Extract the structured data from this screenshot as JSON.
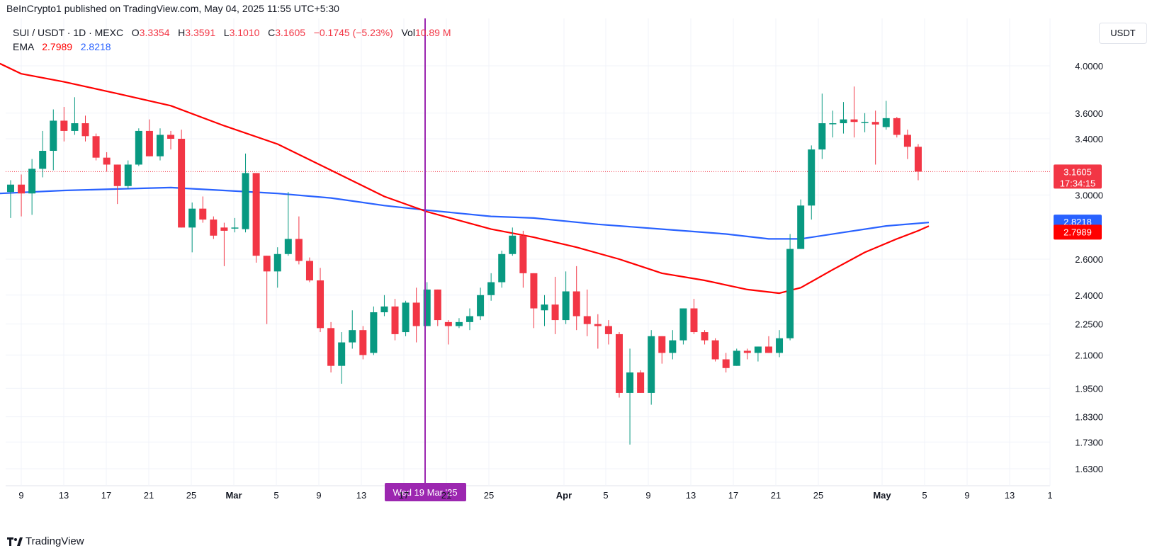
{
  "header": {
    "published": "BeInCrypto1 published on TradingView.com, May 04, 2025 11:55 UTC+5:30",
    "symbol": "SUI / USDT · 1D · MEXC",
    "o_label": "O",
    "o_value": "3.3354",
    "h_label": "H",
    "h_value": "3.3591",
    "l_label": "L",
    "l_value": "3.1010",
    "c_label": "C",
    "c_value": "3.1605",
    "change": "−0.1745 (−5.23%)",
    "vol_label": "Vol",
    "vol_value": "10.89 M",
    "ema_label": "EMA",
    "ema1": "2.7989",
    "ema2": "2.8218"
  },
  "currency_button": "USDT",
  "footer": {
    "brand": "TradingView"
  },
  "colors": {
    "up": "#089981",
    "down": "#f23645",
    "ema_fast": "#ff0000",
    "ema_slow": "#2962ff",
    "crosshair": "#9c27b0"
  },
  "chart_data": {
    "type": "candlestick",
    "y_scale": "log",
    "y_ticks": [
      "4.0000",
      "3.6000",
      "3.4000",
      "3.0000",
      "2.6000",
      "2.4000",
      "2.2500",
      "2.1000",
      "1.9500",
      "1.8300",
      "1.7300",
      "1.6300"
    ],
    "x_ticks": [
      "9",
      "13",
      "17",
      "21",
      "25",
      "Mar",
      "5",
      "9",
      "13",
      "17",
      "21",
      "25",
      "Apr",
      "5",
      "9",
      "13",
      "17",
      "21",
      "25",
      "May",
      "5",
      "9",
      "13",
      "1"
    ],
    "crosshair_label": "Wed 19 Mar '25",
    "price_label": "3.1605",
    "countdown": "17:34:15",
    "ema_fast_label": "2.7989",
    "ema_slow_label": "2.8218",
    "candles": [
      {
        "o": 3.02,
        "h": 3.1,
        "l": 2.85,
        "c": 3.07
      },
      {
        "o": 3.07,
        "h": 3.14,
        "l": 2.86,
        "c": 3.01
      },
      {
        "o": 3.01,
        "h": 3.25,
        "l": 2.87,
        "c": 3.18
      },
      {
        "o": 3.18,
        "h": 3.46,
        "l": 3.12,
        "c": 3.31
      },
      {
        "o": 3.31,
        "h": 3.63,
        "l": 3.17,
        "c": 3.54
      },
      {
        "o": 3.54,
        "h": 3.65,
        "l": 3.38,
        "c": 3.46
      },
      {
        "o": 3.46,
        "h": 3.73,
        "l": 3.43,
        "c": 3.52
      },
      {
        "o": 3.52,
        "h": 3.58,
        "l": 3.38,
        "c": 3.42
      },
      {
        "o": 3.42,
        "h": 3.44,
        "l": 3.24,
        "c": 3.26
      },
      {
        "o": 3.26,
        "h": 3.3,
        "l": 3.16,
        "c": 3.21
      },
      {
        "o": 3.21,
        "h": 3.21,
        "l": 2.94,
        "c": 3.06
      },
      {
        "o": 3.06,
        "h": 3.24,
        "l": 3.04,
        "c": 3.21
      },
      {
        "o": 3.21,
        "h": 3.48,
        "l": 3.2,
        "c": 3.46
      },
      {
        "o": 3.46,
        "h": 3.55,
        "l": 3.27,
        "c": 3.27
      },
      {
        "o": 3.27,
        "h": 3.48,
        "l": 3.24,
        "c": 3.43
      },
      {
        "o": 3.43,
        "h": 3.46,
        "l": 3.32,
        "c": 3.4
      },
      {
        "o": 3.4,
        "h": 3.47,
        "l": 2.79,
        "c": 2.79
      },
      {
        "o": 2.79,
        "h": 2.95,
        "l": 2.64,
        "c": 2.91
      },
      {
        "o": 2.91,
        "h": 2.99,
        "l": 2.82,
        "c": 2.84
      },
      {
        "o": 2.84,
        "h": 2.86,
        "l": 2.72,
        "c": 2.74
      },
      {
        "o": 2.79,
        "h": 2.82,
        "l": 2.56,
        "c": 2.77
      },
      {
        "o": 2.79,
        "h": 2.85,
        "l": 2.76,
        "c": 2.79
      },
      {
        "o": 2.78,
        "h": 3.29,
        "l": 2.76,
        "c": 3.15
      },
      {
        "o": 3.15,
        "h": 3.15,
        "l": 2.58,
        "c": 2.62
      },
      {
        "o": 2.62,
        "h": 2.62,
        "l": 2.25,
        "c": 2.53
      },
      {
        "o": 2.53,
        "h": 2.67,
        "l": 2.44,
        "c": 2.63
      },
      {
        "o": 2.63,
        "h": 3.02,
        "l": 2.62,
        "c": 2.72
      },
      {
        "o": 2.72,
        "h": 2.86,
        "l": 2.57,
        "c": 2.59
      },
      {
        "o": 2.59,
        "h": 2.61,
        "l": 2.47,
        "c": 2.48
      },
      {
        "o": 2.48,
        "h": 2.55,
        "l": 2.21,
        "c": 2.23
      },
      {
        "o": 2.23,
        "h": 2.26,
        "l": 2.02,
        "c": 2.05
      },
      {
        "o": 2.05,
        "h": 2.21,
        "l": 1.97,
        "c": 2.16
      },
      {
        "o": 2.16,
        "h": 2.32,
        "l": 2.13,
        "c": 2.22
      },
      {
        "o": 2.22,
        "h": 2.24,
        "l": 2.08,
        "c": 2.1
      },
      {
        "o": 2.11,
        "h": 2.34,
        "l": 2.1,
        "c": 2.31
      },
      {
        "o": 2.31,
        "h": 2.4,
        "l": 2.29,
        "c": 2.34
      },
      {
        "o": 2.34,
        "h": 2.38,
        "l": 2.17,
        "c": 2.2
      },
      {
        "o": 2.21,
        "h": 2.37,
        "l": 2.19,
        "c": 2.36
      },
      {
        "o": 2.36,
        "h": 2.44,
        "l": 2.16,
        "c": 2.24
      },
      {
        "o": 2.24,
        "h": 2.47,
        "l": 2.24,
        "c": 2.43
      },
      {
        "o": 2.43,
        "h": 2.43,
        "l": 2.24,
        "c": 2.27
      },
      {
        "o": 2.26,
        "h": 2.27,
        "l": 2.15,
        "c": 2.24
      },
      {
        "o": 2.24,
        "h": 2.28,
        "l": 2.23,
        "c": 2.26
      },
      {
        "o": 2.26,
        "h": 2.33,
        "l": 2.22,
        "c": 2.29
      },
      {
        "o": 2.29,
        "h": 2.44,
        "l": 2.27,
        "c": 2.4
      },
      {
        "o": 2.4,
        "h": 2.52,
        "l": 2.37,
        "c": 2.47
      },
      {
        "o": 2.47,
        "h": 2.65,
        "l": 2.44,
        "c": 2.63
      },
      {
        "o": 2.63,
        "h": 2.79,
        "l": 2.62,
        "c": 2.74
      },
      {
        "o": 2.74,
        "h": 2.77,
        "l": 2.44,
        "c": 2.52
      },
      {
        "o": 2.52,
        "h": 2.52,
        "l": 2.23,
        "c": 2.33
      },
      {
        "o": 2.32,
        "h": 2.4,
        "l": 2.24,
        "c": 2.35
      },
      {
        "o": 2.35,
        "h": 2.5,
        "l": 2.2,
        "c": 2.27
      },
      {
        "o": 2.27,
        "h": 2.53,
        "l": 2.25,
        "c": 2.42
      },
      {
        "o": 2.42,
        "h": 2.56,
        "l": 2.22,
        "c": 2.29
      },
      {
        "o": 2.29,
        "h": 2.43,
        "l": 2.19,
        "c": 2.25
      },
      {
        "o": 2.25,
        "h": 2.3,
        "l": 2.13,
        "c": 2.24
      },
      {
        "o": 2.24,
        "h": 2.27,
        "l": 2.15,
        "c": 2.2
      },
      {
        "o": 2.2,
        "h": 2.21,
        "l": 1.91,
        "c": 1.93
      },
      {
        "o": 1.93,
        "h": 2.13,
        "l": 1.72,
        "c": 2.02
      },
      {
        "o": 2.02,
        "h": 2.03,
        "l": 1.93,
        "c": 1.93
      },
      {
        "o": 1.93,
        "h": 2.22,
        "l": 1.88,
        "c": 2.19
      },
      {
        "o": 2.19,
        "h": 2.19,
        "l": 2.06,
        "c": 2.11
      },
      {
        "o": 2.11,
        "h": 2.22,
        "l": 2.08,
        "c": 2.17
      },
      {
        "o": 2.17,
        "h": 2.33,
        "l": 2.15,
        "c": 2.33
      },
      {
        "o": 2.33,
        "h": 2.38,
        "l": 2.2,
        "c": 2.21
      },
      {
        "o": 2.21,
        "h": 2.22,
        "l": 2.15,
        "c": 2.17
      },
      {
        "o": 2.17,
        "h": 2.18,
        "l": 2.07,
        "c": 2.08
      },
      {
        "o": 2.08,
        "h": 2.11,
        "l": 2.02,
        "c": 2.04
      },
      {
        "o": 2.05,
        "h": 2.13,
        "l": 2.05,
        "c": 2.12
      },
      {
        "o": 2.12,
        "h": 2.13,
        "l": 2.08,
        "c": 2.11
      },
      {
        "o": 2.11,
        "h": 2.14,
        "l": 2.07,
        "c": 2.14
      },
      {
        "o": 2.14,
        "h": 2.19,
        "l": 2.11,
        "c": 2.11
      },
      {
        "o": 2.11,
        "h": 2.22,
        "l": 2.09,
        "c": 2.18
      },
      {
        "o": 2.18,
        "h": 2.75,
        "l": 2.17,
        "c": 2.66
      },
      {
        "o": 2.66,
        "h": 2.97,
        "l": 2.66,
        "c": 2.93
      },
      {
        "o": 2.93,
        "h": 3.35,
        "l": 2.84,
        "c": 3.32
      },
      {
        "o": 3.32,
        "h": 3.76,
        "l": 3.25,
        "c": 3.52
      },
      {
        "o": 3.52,
        "h": 3.62,
        "l": 3.41,
        "c": 3.52
      },
      {
        "o": 3.52,
        "h": 3.69,
        "l": 3.44,
        "c": 3.55
      },
      {
        "o": 3.55,
        "h": 3.82,
        "l": 3.41,
        "c": 3.53
      },
      {
        "o": 3.53,
        "h": 3.6,
        "l": 3.45,
        "c": 3.53
      },
      {
        "o": 3.53,
        "h": 3.62,
        "l": 3.21,
        "c": 3.51
      },
      {
        "o": 3.49,
        "h": 3.7,
        "l": 3.47,
        "c": 3.56
      },
      {
        "o": 3.56,
        "h": 3.57,
        "l": 3.41,
        "c": 3.43
      },
      {
        "o": 3.43,
        "h": 3.47,
        "l": 3.25,
        "c": 3.34
      },
      {
        "o": 3.34,
        "h": 3.36,
        "l": 3.1,
        "c": 3.16
      }
    ],
    "ema_fast": [
      {
        "i": -1,
        "v": 4.02
      },
      {
        "i": 1,
        "v": 3.93
      },
      {
        "i": 5,
        "v": 3.86
      },
      {
        "i": 10,
        "v": 3.76
      },
      {
        "i": 15,
        "v": 3.66
      },
      {
        "i": 20,
        "v": 3.5
      },
      {
        "i": 25,
        "v": 3.36
      },
      {
        "i": 30,
        "v": 3.17
      },
      {
        "i": 35,
        "v": 2.99
      },
      {
        "i": 39,
        "v": 2.89
      },
      {
        "i": 45,
        "v": 2.78
      },
      {
        "i": 49,
        "v": 2.73
      },
      {
        "i": 53,
        "v": 2.67
      },
      {
        "i": 57,
        "v": 2.6
      },
      {
        "i": 61,
        "v": 2.52
      },
      {
        "i": 65,
        "v": 2.48
      },
      {
        "i": 69,
        "v": 2.43
      },
      {
        "i": 72,
        "v": 2.41
      },
      {
        "i": 74,
        "v": 2.44
      },
      {
        "i": 77,
        "v": 2.54
      },
      {
        "i": 80,
        "v": 2.64
      },
      {
        "i": 83,
        "v": 2.72
      },
      {
        "i": 85,
        "v": 2.77
      },
      {
        "i": 86,
        "v": 2.7989
      }
    ],
    "ema_slow": [
      {
        "i": -1,
        "v": 3.01
      },
      {
        "i": 5,
        "v": 3.03
      },
      {
        "i": 10,
        "v": 3.04
      },
      {
        "i": 15,
        "v": 3.05
      },
      {
        "i": 20,
        "v": 3.03
      },
      {
        "i": 25,
        "v": 3.01
      },
      {
        "i": 30,
        "v": 2.98
      },
      {
        "i": 35,
        "v": 2.93
      },
      {
        "i": 39,
        "v": 2.9
      },
      {
        "i": 45,
        "v": 2.86
      },
      {
        "i": 49,
        "v": 2.85
      },
      {
        "i": 55,
        "v": 2.81
      },
      {
        "i": 61,
        "v": 2.78
      },
      {
        "i": 67,
        "v": 2.75
      },
      {
        "i": 71,
        "v": 2.72
      },
      {
        "i": 74,
        "v": 2.72
      },
      {
        "i": 78,
        "v": 2.76
      },
      {
        "i": 82,
        "v": 2.8
      },
      {
        "i": 86,
        "v": 2.8218
      }
    ]
  }
}
